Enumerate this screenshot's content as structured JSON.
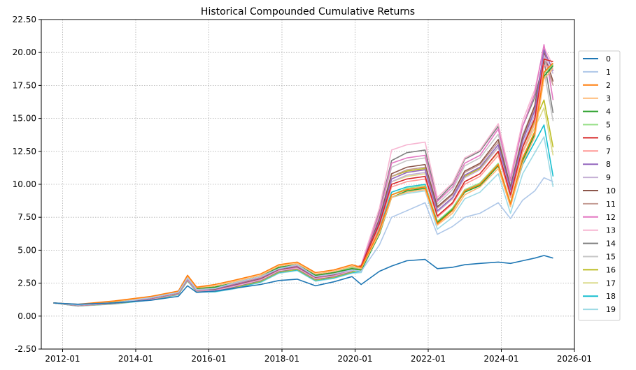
{
  "chart_data": {
    "type": "line",
    "title": "Historical Compounded Cumulative Returns",
    "xlabel": "",
    "ylabel": "",
    "x_ticks": [
      "2012-01",
      "2014-01",
      "2016-01",
      "2018-01",
      "2020-01",
      "2022-01",
      "2024-01",
      "2026-01"
    ],
    "x_range": [
      "2011-06",
      "2026-01"
    ],
    "y_ticks": [
      "-2.50",
      "0.00",
      "2.50",
      "5.00",
      "7.50",
      "10.00",
      "12.50",
      "15.00",
      "17.50",
      "20.00",
      "22.50"
    ],
    "ylim": [
      -2.5,
      22.5
    ],
    "grid": true,
    "legend_position": "right",
    "dates": [
      "2011-10",
      "2012-06",
      "2013-06",
      "2014-06",
      "2015-03",
      "2015-06",
      "2015-09",
      "2016-03",
      "2016-09",
      "2017-06",
      "2017-12",
      "2018-06",
      "2018-12",
      "2019-06",
      "2019-12",
      "2020-03",
      "2020-09",
      "2021-01",
      "2021-06",
      "2021-12",
      "2022-04",
      "2022-09",
      "2023-01",
      "2023-06",
      "2023-12",
      "2024-04",
      "2024-08",
      "2024-12",
      "2025-03",
      "2025-06"
    ],
    "series": [
      {
        "name": "0",
        "color": "#1f77b4",
        "values": [
          1.0,
          0.9,
          1.0,
          1.2,
          1.5,
          2.3,
          1.8,
          1.9,
          2.1,
          2.4,
          2.7,
          2.8,
          2.3,
          2.6,
          3.0,
          2.4,
          3.4,
          3.8,
          4.2,
          4.3,
          3.6,
          3.7,
          3.9,
          4.0,
          4.1,
          4.0,
          4.2,
          4.4,
          4.6,
          4.4
        ]
      },
      {
        "name": "1",
        "color": "#aec7e8",
        "values": [
          1.0,
          0.85,
          1.0,
          1.4,
          1.8,
          2.9,
          2.0,
          2.1,
          2.5,
          3.0,
          3.6,
          3.9,
          3.0,
          3.2,
          3.5,
          3.4,
          5.4,
          7.5,
          8.0,
          8.6,
          6.2,
          6.8,
          7.5,
          7.8,
          8.6,
          7.4,
          8.8,
          9.5,
          10.5,
          10.2
        ]
      },
      {
        "name": "2",
        "color": "#ff7f0e",
        "values": [
          1.0,
          0.9,
          1.15,
          1.5,
          1.9,
          3.1,
          2.2,
          2.4,
          2.7,
          3.2,
          3.9,
          4.1,
          3.3,
          3.5,
          3.9,
          3.7,
          6.5,
          9.2,
          9.6,
          9.8,
          7.0,
          8.0,
          9.5,
          10.0,
          11.5,
          8.5,
          12.0,
          14.0,
          18.5,
          19.2
        ]
      },
      {
        "name": "3",
        "color": "#ffbb78",
        "values": [
          1.0,
          0.88,
          1.1,
          1.45,
          1.85,
          3.0,
          2.15,
          2.3,
          2.6,
          3.1,
          3.8,
          4.0,
          3.2,
          3.4,
          3.8,
          3.6,
          6.3,
          9.0,
          9.4,
          9.6,
          6.9,
          7.8,
          9.2,
          9.8,
          11.2,
          8.3,
          11.6,
          13.6,
          18.0,
          18.8
        ]
      },
      {
        "name": "4",
        "color": "#2ca02c",
        "values": [
          1.0,
          0.85,
          1.05,
          1.4,
          1.8,
          2.9,
          2.1,
          2.2,
          2.5,
          3.0,
          3.7,
          3.9,
          3.1,
          3.3,
          3.6,
          3.5,
          6.2,
          9.0,
          9.5,
          9.7,
          7.1,
          8.1,
          9.4,
          9.9,
          11.4,
          8.4,
          11.8,
          13.8,
          18.2,
          19.0
        ]
      },
      {
        "name": "5",
        "color": "#98df8a",
        "values": [
          1.0,
          0.85,
          1.05,
          1.4,
          1.8,
          2.9,
          2.1,
          2.2,
          2.5,
          3.0,
          3.7,
          3.9,
          3.1,
          3.3,
          3.7,
          3.6,
          6.4,
          9.2,
          9.7,
          9.9,
          7.2,
          8.2,
          9.6,
          10.1,
          11.6,
          8.6,
          12.0,
          14.0,
          18.4,
          19.1
        ]
      },
      {
        "name": "6",
        "color": "#d62728",
        "values": [
          1.0,
          0.85,
          1.05,
          1.4,
          1.8,
          2.9,
          2.1,
          2.2,
          2.5,
          3.0,
          3.7,
          3.9,
          3.1,
          3.3,
          3.7,
          3.8,
          7.0,
          10.0,
          10.4,
          10.6,
          7.6,
          8.6,
          10.2,
          10.8,
          12.5,
          9.2,
          12.8,
          15.0,
          19.5,
          19.3
        ]
      },
      {
        "name": "7",
        "color": "#ff9896",
        "values": [
          1.0,
          0.84,
          1.03,
          1.38,
          1.78,
          2.85,
          2.05,
          2.15,
          2.45,
          2.95,
          3.65,
          3.85,
          3.05,
          3.25,
          3.65,
          3.7,
          6.8,
          9.8,
          10.2,
          10.4,
          7.5,
          8.5,
          10.0,
          10.6,
          12.2,
          9.0,
          12.5,
          14.6,
          19.0,
          18.9
        ]
      },
      {
        "name": "8",
        "color": "#9467bd",
        "values": [
          1.0,
          0.83,
          1.02,
          1.36,
          1.76,
          2.82,
          2.0,
          2.1,
          2.4,
          2.9,
          3.6,
          3.8,
          3.0,
          3.2,
          3.6,
          3.7,
          7.2,
          10.4,
          10.9,
          11.1,
          8.0,
          9.0,
          10.7,
          11.3,
          13.0,
          9.6,
          13.3,
          15.6,
          20.2,
          18.6
        ]
      },
      {
        "name": "9",
        "color": "#c5b0d5",
        "values": [
          1.0,
          0.83,
          1.02,
          1.36,
          1.76,
          2.82,
          2.0,
          2.1,
          2.4,
          2.9,
          3.6,
          3.8,
          3.0,
          3.2,
          3.6,
          3.7,
          7.1,
          10.2,
          10.7,
          10.9,
          7.9,
          8.9,
          10.5,
          11.1,
          12.8,
          9.4,
          13.0,
          15.3,
          19.8,
          18.4
        ]
      },
      {
        "name": "10",
        "color": "#8c564b",
        "values": [
          1.0,
          0.82,
          1.0,
          1.34,
          1.74,
          2.8,
          1.98,
          2.05,
          2.35,
          2.85,
          3.55,
          3.75,
          2.95,
          3.15,
          3.55,
          3.7,
          7.4,
          10.8,
          11.3,
          11.5,
          8.3,
          9.3,
          11.0,
          11.6,
          13.4,
          9.8,
          13.6,
          16.0,
          20.0,
          17.8
        ]
      },
      {
        "name": "11",
        "color": "#c49c94",
        "values": [
          1.0,
          0.82,
          1.0,
          1.34,
          1.74,
          2.8,
          1.98,
          2.05,
          2.35,
          2.85,
          3.55,
          3.75,
          2.95,
          3.15,
          3.55,
          3.7,
          7.3,
          10.6,
          11.1,
          11.3,
          8.2,
          9.2,
          10.9,
          11.5,
          13.2,
          9.7,
          13.4,
          15.8,
          19.6,
          17.5
        ]
      },
      {
        "name": "12",
        "color": "#e377c2",
        "values": [
          1.0,
          0.8,
          0.98,
          1.32,
          1.72,
          2.78,
          1.95,
          2.0,
          2.3,
          2.8,
          3.5,
          3.7,
          2.9,
          3.1,
          3.5,
          3.8,
          7.8,
          11.6,
          12.0,
          12.2,
          8.7,
          9.8,
          11.6,
          12.2,
          14.2,
          10.3,
          14.4,
          16.9,
          20.6,
          16.4
        ]
      },
      {
        "name": "13",
        "color": "#f7b6d2",
        "values": [
          1.0,
          0.8,
          0.97,
          1.3,
          1.7,
          2.75,
          1.92,
          1.95,
          2.25,
          2.75,
          3.45,
          3.65,
          2.85,
          3.05,
          3.45,
          3.9,
          8.2,
          12.6,
          13.0,
          13.2,
          9.0,
          10.1,
          12.0,
          12.6,
          14.6,
          10.6,
          14.8,
          17.2,
          20.4,
          19.0
        ]
      },
      {
        "name": "14",
        "color": "#7f7f7f",
        "values": [
          1.0,
          0.79,
          0.96,
          1.28,
          1.68,
          2.72,
          1.9,
          1.92,
          2.2,
          2.7,
          3.4,
          3.6,
          2.8,
          3.0,
          3.4,
          3.8,
          8.0,
          11.8,
          12.4,
          12.6,
          8.8,
          10.0,
          11.9,
          12.5,
          14.4,
          10.5,
          14.4,
          16.6,
          19.4,
          15.4
        ]
      },
      {
        "name": "15",
        "color": "#c7c7c7",
        "values": [
          1.0,
          0.79,
          0.96,
          1.28,
          1.68,
          2.72,
          1.9,
          1.92,
          2.2,
          2.7,
          3.4,
          3.6,
          2.8,
          3.0,
          3.4,
          3.7,
          7.7,
          11.3,
          11.8,
          12.0,
          8.5,
          9.6,
          11.4,
          12.0,
          13.8,
          10.0,
          13.8,
          15.9,
          18.6,
          14.8
        ]
      },
      {
        "name": "16",
        "color": "#bcbd22",
        "values": [
          1.0,
          0.78,
          0.95,
          1.26,
          1.66,
          2.7,
          1.88,
          1.9,
          2.15,
          2.65,
          3.35,
          3.55,
          2.75,
          2.95,
          3.35,
          3.6,
          7.3,
          10.6,
          11.0,
          11.2,
          7.9,
          8.9,
          10.6,
          11.2,
          12.8,
          9.3,
          12.8,
          14.8,
          16.4,
          12.8
        ]
      },
      {
        "name": "17",
        "color": "#dbdb8d",
        "values": [
          1.0,
          0.78,
          0.95,
          1.26,
          1.66,
          2.7,
          1.88,
          1.9,
          2.15,
          2.65,
          3.35,
          3.55,
          2.75,
          2.95,
          3.35,
          3.5,
          7.0,
          10.2,
          10.6,
          10.8,
          7.6,
          8.6,
          10.2,
          10.8,
          12.4,
          9.0,
          12.4,
          14.3,
          15.8,
          12.2
        ]
      },
      {
        "name": "18",
        "color": "#17becf",
        "values": [
          1.0,
          0.77,
          0.93,
          1.24,
          1.64,
          2.68,
          1.85,
          1.86,
          2.1,
          2.6,
          3.3,
          3.5,
          2.7,
          2.9,
          3.3,
          3.4,
          6.6,
          9.4,
          9.8,
          10.0,
          7.1,
          8.0,
          9.5,
          10.0,
          11.5,
          8.4,
          11.5,
          13.2,
          14.5,
          10.6
        ]
      },
      {
        "name": "19",
        "color": "#9edae5",
        "values": [
          1.0,
          0.76,
          0.92,
          1.22,
          1.62,
          2.66,
          1.82,
          1.83,
          2.05,
          2.55,
          3.25,
          3.45,
          2.65,
          2.85,
          3.25,
          3.3,
          6.3,
          9.0,
          9.3,
          9.5,
          6.6,
          7.5,
          8.9,
          9.4,
          10.8,
          7.8,
          10.8,
          12.4,
          13.6,
          9.8
        ]
      }
    ]
  }
}
